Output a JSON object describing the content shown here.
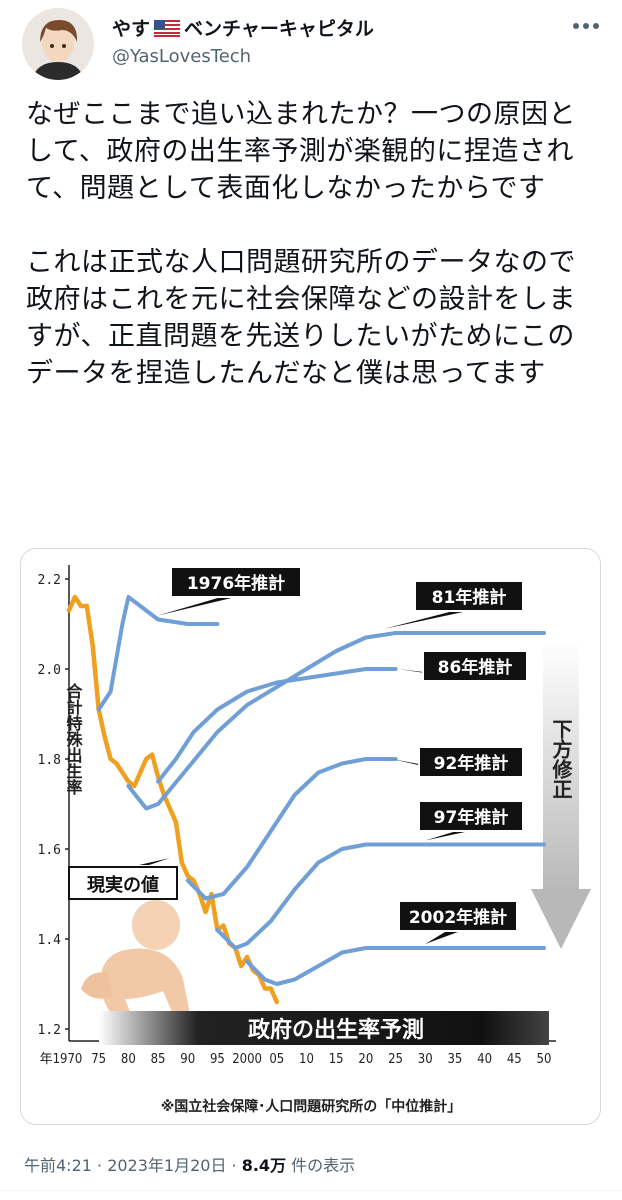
{
  "user": {
    "display_name": "やす",
    "display_name_suffix": "ベンチャーキャピタル",
    "flag_icon": "us-flag-icon",
    "handle": "@YasLovesTech"
  },
  "tweet": {
    "text": "なぜここまで追い込まれたか？一つの原因として、政府の出生率予測が楽観的に捏造されて、問題として表面化しなかったからです\n\nこれは正式な人口問題研究所のデータなので政府はこれを元に社会保障などの設計をしますが、正直問題を先送りしたいがためにこのデータを捏造したんだなと僕は思ってます"
  },
  "chart_data": {
    "type": "line",
    "ylabel": "合計特殊出生率",
    "ylim": [
      1.2,
      2.2
    ],
    "yticks": [
      "1.2",
      "1.4",
      "1.6",
      "1.8",
      "2.0",
      "2.2"
    ],
    "xlim": [
      1970,
      2050
    ],
    "xticks": [
      "年1970",
      "75",
      "80",
      "85",
      "90",
      "95",
      "2000",
      "05",
      "10",
      "15",
      "20",
      "25",
      "30",
      "35",
      "40",
      "45",
      "50"
    ],
    "series": [
      {
        "name": "現実の値",
        "color": "#f0a020",
        "x": [
          1970,
          1971,
          1972,
          1973,
          1974,
          1975,
          1976,
          1977,
          1978,
          1979,
          1980,
          1981,
          1982,
          1983,
          1984,
          1985,
          1986,
          1987,
          1988,
          1989,
          1990,
          1991,
          1992,
          1993,
          1994,
          1995,
          1996,
          1997,
          1998,
          1999,
          2000,
          2001,
          2002,
          2003,
          2004,
          2005
        ],
        "y": [
          2.13,
          2.16,
          2.14,
          2.14,
          2.05,
          1.91,
          1.85,
          1.8,
          1.79,
          1.77,
          1.75,
          1.74,
          1.77,
          1.8,
          1.81,
          1.76,
          1.72,
          1.69,
          1.66,
          1.57,
          1.54,
          1.53,
          1.5,
          1.46,
          1.5,
          1.42,
          1.43,
          1.39,
          1.38,
          1.34,
          1.36,
          1.33,
          1.32,
          1.29,
          1.29,
          1.26
        ]
      },
      {
        "name": "1976年推計",
        "color": "#6f9fd6",
        "x": [
          1975,
          1977,
          1979,
          1980,
          1982,
          1985,
          1990,
          1995
        ],
        "y": [
          1.91,
          1.95,
          2.1,
          2.16,
          2.14,
          2.11,
          2.1,
          2.1
        ]
      },
      {
        "name": "81年推計",
        "color": "#6f9fd6",
        "x": [
          1980,
          1983,
          1985,
          1990,
          1995,
          2000,
          2005,
          2010,
          2015,
          2020,
          2025,
          2030,
          2040,
          2050
        ],
        "y": [
          1.74,
          1.69,
          1.7,
          1.78,
          1.86,
          1.92,
          1.96,
          2.0,
          2.04,
          2.07,
          2.08,
          2.08,
          2.08,
          2.08
        ]
      },
      {
        "name": "86年推計",
        "color": "#6f9fd6",
        "x": [
          1985,
          1988,
          1991,
          1995,
          2000,
          2005,
          2010,
          2015,
          2020,
          2025
        ],
        "y": [
          1.75,
          1.8,
          1.86,
          1.91,
          1.95,
          1.97,
          1.98,
          1.99,
          2.0,
          2.0
        ]
      },
      {
        "name": "92年推計",
        "color": "#6f9fd6",
        "x": [
          1990,
          1993,
          1996,
          2000,
          2004,
          2008,
          2012,
          2016,
          2020,
          2025
        ],
        "y": [
          1.53,
          1.49,
          1.5,
          1.56,
          1.64,
          1.72,
          1.77,
          1.79,
          1.8,
          1.8
        ]
      },
      {
        "name": "97年推計",
        "color": "#6f9fd6",
        "x": [
          1995,
          1998,
          2000,
          2004,
          2008,
          2012,
          2016,
          2020,
          2030,
          2040,
          2050
        ],
        "y": [
          1.42,
          1.38,
          1.39,
          1.44,
          1.51,
          1.57,
          1.6,
          1.61,
          1.61,
          1.61,
          1.61
        ]
      },
      {
        "name": "2002年推計",
        "color": "#6f9fd6",
        "x": [
          2000,
          2003,
          2005,
          2008,
          2012,
          2016,
          2020,
          2030,
          2040,
          2050
        ],
        "y": [
          1.35,
          1.31,
          1.3,
          1.31,
          1.34,
          1.37,
          1.38,
          1.38,
          1.38,
          1.38
        ]
      }
    ],
    "labels": {
      "actual": "現実の値",
      "downward": "下方修正",
      "banner": "政府の出生率予測",
      "source": "※国立社会保障･人口問題研究所の「中位推計」"
    }
  },
  "meta": {
    "time": "午前4:21 · 2023年1月20日 · ",
    "views_count": "8.4万",
    "views_suffix": " 件の表示"
  },
  "colors": {
    "actual_line": "#f0a020",
    "projection_line": "#6f9fd6",
    "arrow": "#c8c8c8",
    "text_secondary": "#536471"
  }
}
